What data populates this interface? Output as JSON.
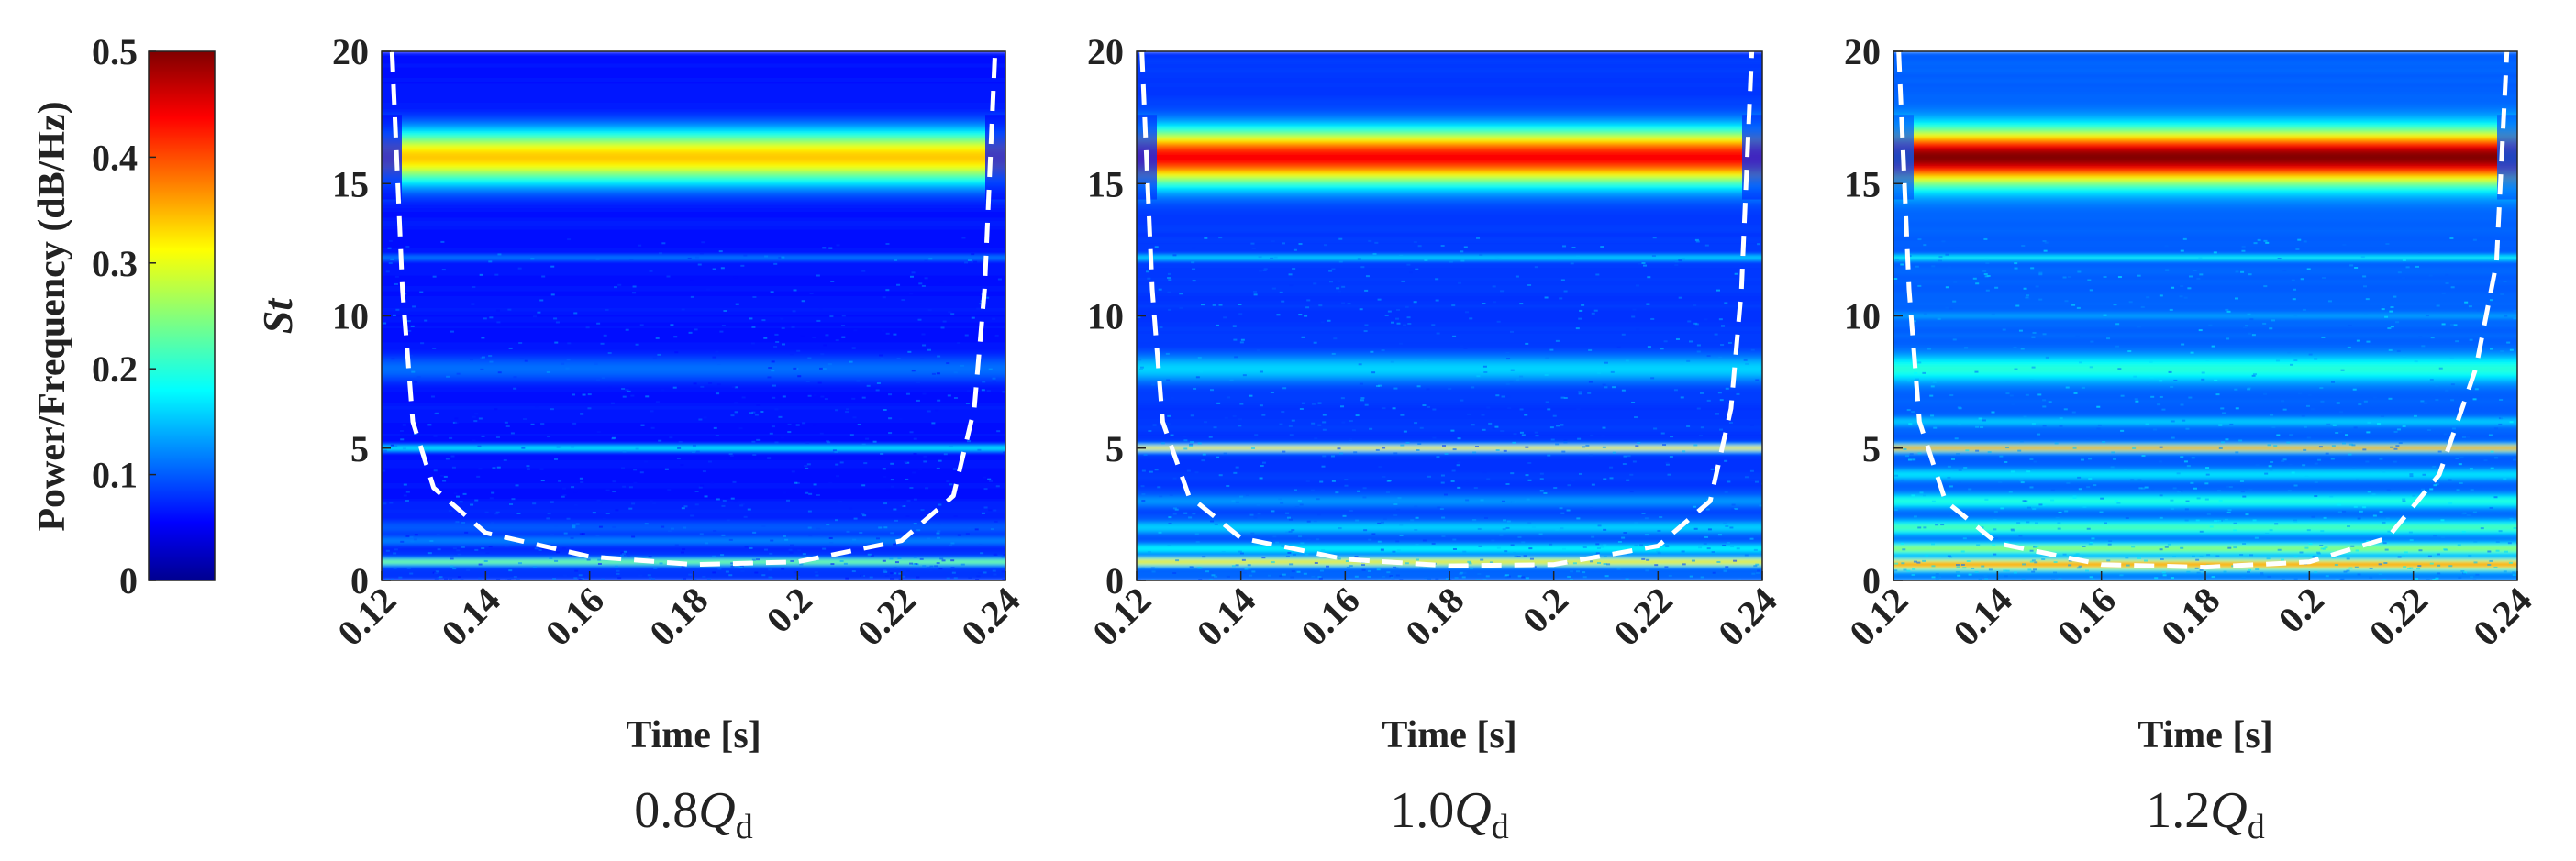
{
  "chart_data": {
    "type": "heatmap",
    "colorbar": {
      "label": "Power/Frequency (dB/Hz)",
      "range": [
        0,
        0.5
      ],
      "ticks": [
        0,
        0.1,
        0.2,
        0.3,
        0.4,
        0.5
      ],
      "tick_labels": [
        "0",
        "0.1",
        "0.2",
        "0.3",
        "0.4",
        "0.5"
      ],
      "colormap": "jet"
    },
    "x_ticks": [
      0.12,
      0.14,
      0.16,
      0.18,
      0.2,
      0.22,
      0.24
    ],
    "x_tick_labels": [
      "0.12",
      "0.14",
      "0.16",
      "0.18",
      "0.2",
      "0.22",
      "0.24"
    ],
    "y_ticks": [
      0,
      5,
      10,
      15,
      20
    ],
    "y_tick_labels": [
      "0",
      "5",
      "10",
      "15",
      "20"
    ],
    "xlim": [
      0.12,
      0.24
    ],
    "ylim": [
      0,
      20
    ],
    "panels": [
      {
        "id": "p08",
        "condition_prefix": "0.8",
        "condition_symbol": "Q",
        "condition_subscript": "d",
        "xlabel": "Time [s]",
        "ylabel": "St",
        "background_level": 0.06,
        "bands": [
          {
            "st": 16.0,
            "width": 1.0,
            "level": 0.34
          },
          {
            "st": 12.2,
            "width": 0.06,
            "level": 0.14
          },
          {
            "st": 8.0,
            "width": 0.5,
            "level": 0.11
          },
          {
            "st": 5.0,
            "width": 0.08,
            "level": 0.2
          },
          {
            "st": 2.0,
            "width": 0.3,
            "level": 0.1
          },
          {
            "st": 1.5,
            "width": 0.2,
            "level": 0.12
          },
          {
            "st": 0.7,
            "width": 0.12,
            "level": 0.26
          }
        ],
        "envelope": {
          "t": [
            0.122,
            0.124,
            0.126,
            0.13,
            0.14,
            0.16,
            0.18,
            0.2,
            0.22,
            0.23,
            0.234,
            0.236,
            0.238
          ],
          "st": [
            20,
            11,
            6,
            3.5,
            1.8,
            0.9,
            0.6,
            0.7,
            1.5,
            3.2,
            6.5,
            11,
            20
          ]
        }
      },
      {
        "id": "p10",
        "condition_prefix": "1.0",
        "condition_symbol": "Q",
        "condition_subscript": "d",
        "xlabel": "Time [s]",
        "ylabel": "",
        "background_level": 0.08,
        "bands": [
          {
            "st": 16.0,
            "width": 1.0,
            "level": 0.44
          },
          {
            "st": 12.2,
            "width": 0.08,
            "level": 0.18
          },
          {
            "st": 8.0,
            "width": 0.5,
            "level": 0.16
          },
          {
            "st": 5.0,
            "width": 0.1,
            "level": 0.36
          },
          {
            "st": 3.0,
            "width": 0.25,
            "level": 0.13
          },
          {
            "st": 2.0,
            "width": 0.25,
            "level": 0.16
          },
          {
            "st": 1.2,
            "width": 0.2,
            "level": 0.18
          },
          {
            "st": 0.7,
            "width": 0.15,
            "level": 0.34
          }
        ],
        "envelope": {
          "t": [
            0.121,
            0.123,
            0.125,
            0.13,
            0.14,
            0.16,
            0.18,
            0.2,
            0.22,
            0.23,
            0.234,
            0.236,
            0.238
          ],
          "st": [
            20,
            11,
            6,
            3.2,
            1.6,
            0.8,
            0.55,
            0.6,
            1.3,
            3.0,
            6.5,
            11,
            20
          ]
        }
      },
      {
        "id": "p12",
        "condition_prefix": "1.2",
        "condition_symbol": "Q",
        "condition_subscript": "d",
        "xlabel": "Time [s]",
        "ylabel": "",
        "background_level": 0.1,
        "bands": [
          {
            "st": 16.0,
            "width": 1.0,
            "level": 0.5
          },
          {
            "st": 12.2,
            "width": 0.08,
            "level": 0.2
          },
          {
            "st": 10.0,
            "width": 0.1,
            "level": 0.14
          },
          {
            "st": 8.0,
            "width": 0.5,
            "level": 0.2
          },
          {
            "st": 6.0,
            "width": 0.15,
            "level": 0.16
          },
          {
            "st": 5.0,
            "width": 0.12,
            "level": 0.38
          },
          {
            "st": 4.0,
            "width": 0.2,
            "level": 0.17
          },
          {
            "st": 3.0,
            "width": 0.25,
            "level": 0.2
          },
          {
            "st": 2.0,
            "width": 0.25,
            "level": 0.22
          },
          {
            "st": 1.2,
            "width": 0.2,
            "level": 0.26
          },
          {
            "st": 0.6,
            "width": 0.2,
            "level": 0.38
          }
        ],
        "envelope": {
          "t": [
            0.121,
            0.123,
            0.125,
            0.13,
            0.14,
            0.16,
            0.18,
            0.2,
            0.215,
            0.225,
            0.232,
            0.236,
            0.238
          ],
          "st": [
            20,
            11,
            6,
            3.0,
            1.4,
            0.6,
            0.5,
            0.7,
            1.6,
            4.0,
            8.0,
            12,
            20
          ]
        }
      }
    ]
  }
}
